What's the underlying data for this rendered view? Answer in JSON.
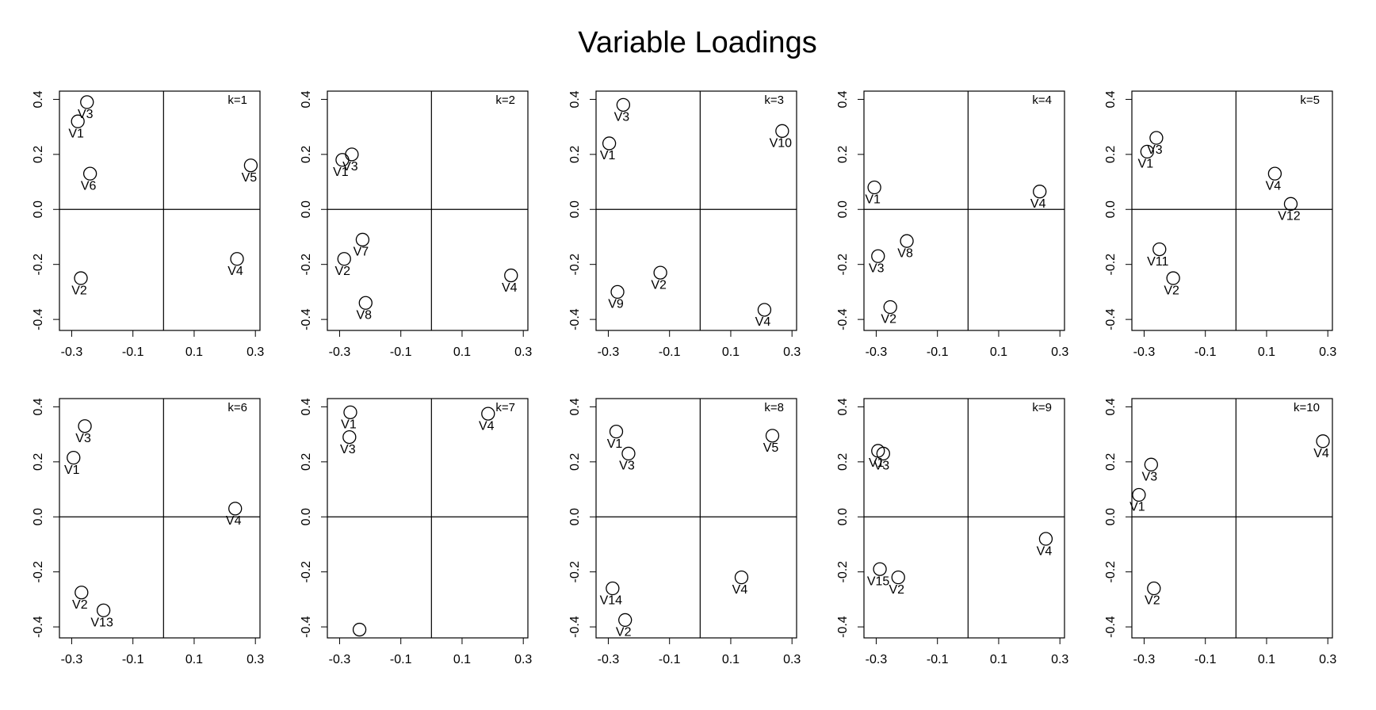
{
  "title": "Variable Loadings",
  "chart_data": [
    {
      "type": "scatter",
      "subtitle": "k=1",
      "x": [
        -0.25,
        -0.28,
        -0.24,
        0.285,
        -0.27,
        0.24
      ],
      "values": [
        0.39,
        0.32,
        0.13,
        0.16,
        -0.25,
        -0.18
      ],
      "point_labels": [
        "V3",
        "V1",
        "V6",
        "V5",
        "V2",
        "V4"
      ],
      "xlim": [
        -0.34,
        0.315
      ],
      "ylim": [
        -0.44,
        0.43
      ],
      "xticks": [
        -0.3,
        -0.1,
        0.1,
        0.3
      ],
      "yticks": [
        -0.4,
        -0.2,
        {
          "value": 0,
          "label": "0.0"
        },
        0.2,
        0.4
      ]
    },
    {
      "type": "scatter",
      "subtitle": "k=2",
      "x": [
        -0.291,
        -0.26,
        -0.225,
        -0.285,
        -0.215,
        0.26
      ],
      "values": [
        0.18,
        0.2,
        -0.11,
        -0.18,
        -0.34,
        -0.24
      ],
      "point_labels": [
        "V1",
        "V3",
        "V7",
        "V2",
        "V8",
        "V4"
      ],
      "xlim": [
        -0.34,
        0.315
      ],
      "ylim": [
        -0.44,
        0.43
      ],
      "xticks": [
        -0.3,
        -0.1,
        0.1,
        0.3
      ],
      "yticks": [
        -0.4,
        -0.2,
        {
          "value": 0,
          "label": "0.0"
        },
        0.2,
        0.4
      ]
    },
    {
      "type": "scatter",
      "subtitle": "k=3",
      "x": [
        -0.251,
        -0.297,
        0.268,
        -0.13,
        -0.27,
        0.21
      ],
      "values": [
        0.38,
        0.24,
        0.285,
        -0.23,
        -0.3,
        -0.365
      ],
      "point_labels": [
        "V3",
        "V1",
        "V10",
        "V2",
        "V9",
        "V4"
      ],
      "xlim": [
        -0.34,
        0.315
      ],
      "ylim": [
        -0.44,
        0.43
      ],
      "xticks": [
        -0.3,
        -0.1,
        0.1,
        0.3
      ],
      "yticks": [
        -0.4,
        -0.2,
        {
          "value": 0,
          "label": "0.0"
        },
        0.2,
        0.4
      ]
    },
    {
      "type": "scatter",
      "subtitle": "k=4",
      "x": [
        -0.306,
        0.234,
        -0.2,
        -0.294,
        -0.254
      ],
      "values": [
        0.08,
        0.065,
        -0.115,
        -0.17,
        -0.355
      ],
      "point_labels": [
        "V1",
        "V4",
        "V8",
        "V3",
        "V2"
      ],
      "xlim": [
        -0.34,
        0.315
      ],
      "ylim": [
        -0.44,
        0.43
      ],
      "xticks": [
        -0.3,
        -0.1,
        0.1,
        0.3
      ],
      "yticks": [
        -0.4,
        -0.2,
        {
          "value": 0,
          "label": "0.0"
        },
        0.2,
        0.4
      ]
    },
    {
      "type": "scatter",
      "subtitle": "k=5",
      "x": [
        -0.26,
        -0.29,
        0.127,
        0.179,
        -0.25,
        -0.205
      ],
      "values": [
        0.26,
        0.21,
        0.13,
        0.02,
        -0.145,
        -0.25
      ],
      "point_labels": [
        "V3",
        "V1",
        "V4",
        "V12",
        "V11",
        "V2"
      ],
      "xlim": [
        -0.34,
        0.315
      ],
      "ylim": [
        -0.44,
        0.43
      ],
      "xticks": [
        -0.3,
        -0.1,
        0.1,
        0.3
      ],
      "yticks": [
        -0.4,
        -0.2,
        {
          "value": 0,
          "label": "0.0"
        },
        0.2,
        0.4
      ]
    },
    {
      "type": "scatter",
      "subtitle": "k=6",
      "x": [
        -0.257,
        -0.294,
        0.234,
        -0.268,
        -0.196
      ],
      "values": [
        0.33,
        0.215,
        0.03,
        -0.275,
        -0.34
      ],
      "point_labels": [
        "V3",
        "V1",
        "V4",
        "V2",
        "V13"
      ],
      "xlim": [
        -0.34,
        0.315
      ],
      "ylim": [
        -0.44,
        0.43
      ],
      "xticks": [
        -0.3,
        -0.1,
        0.1,
        0.3
      ],
      "yticks": [
        -0.4,
        -0.2,
        {
          "value": 0,
          "label": "0.0"
        },
        0.2,
        0.4
      ]
    },
    {
      "type": "scatter",
      "subtitle": "k=7",
      "x": [
        -0.265,
        -0.268,
        0.185,
        -0.235
      ],
      "values": [
        0.38,
        0.29,
        0.375,
        -0.41
      ],
      "point_labels": [
        "V1",
        "V3",
        "V4",
        null
      ],
      "xlim": [
        -0.34,
        0.315
      ],
      "ylim": [
        -0.44,
        0.43
      ],
      "xticks": [
        -0.3,
        -0.1,
        0.1,
        0.3
      ],
      "yticks": [
        -0.4,
        -0.2,
        {
          "value": 0,
          "label": "0.0"
        },
        0.2,
        0.4
      ]
    },
    {
      "type": "scatter",
      "subtitle": "k=8",
      "x": [
        -0.274,
        -0.234,
        0.236,
        -0.286,
        -0.245,
        0.135
      ],
      "values": [
        0.31,
        0.23,
        0.295,
        -0.26,
        -0.375,
        -0.22
      ],
      "point_labels": [
        "V1",
        "V3",
        "V5",
        "V14",
        "V2",
        "V4"
      ],
      "xlim": [
        -0.34,
        0.315
      ],
      "ylim": [
        -0.44,
        0.43
      ],
      "xticks": [
        -0.3,
        -0.1,
        0.1,
        0.3
      ],
      "yticks": [
        -0.4,
        -0.2,
        {
          "value": 0,
          "label": "0.0"
        },
        0.2,
        0.4
      ]
    },
    {
      "type": "scatter",
      "subtitle": "k=9",
      "x": [
        -0.294,
        -0.277,
        -0.288,
        -0.228,
        0.254
      ],
      "values": [
        0.24,
        0.23,
        -0.19,
        -0.22,
        -0.08
      ],
      "point_labels": [
        "V1",
        "V3",
        "V15",
        "V2",
        "V4"
      ],
      "xlim": [
        -0.34,
        0.315
      ],
      "ylim": [
        -0.44,
        0.43
      ],
      "xticks": [
        -0.3,
        -0.1,
        0.1,
        0.3
      ],
      "yticks": [
        -0.4,
        -0.2,
        {
          "value": 0,
          "label": "0.0"
        },
        0.2,
        0.4
      ]
    },
    {
      "type": "scatter",
      "subtitle": "k=10",
      "x": [
        0.284,
        -0.277,
        -0.317,
        -0.268
      ],
      "values": [
        0.275,
        0.19,
        0.08,
        -0.26
      ],
      "point_labels": [
        "V4",
        "V3",
        "V1",
        "V2"
      ],
      "xlim": [
        -0.34,
        0.315
      ],
      "ylim": [
        -0.44,
        0.43
      ],
      "xticks": [
        -0.3,
        -0.1,
        0.1,
        0.3
      ],
      "yticks": [
        -0.4,
        -0.2,
        {
          "value": 0,
          "label": "0.0"
        },
        0.2,
        0.4
      ]
    }
  ]
}
